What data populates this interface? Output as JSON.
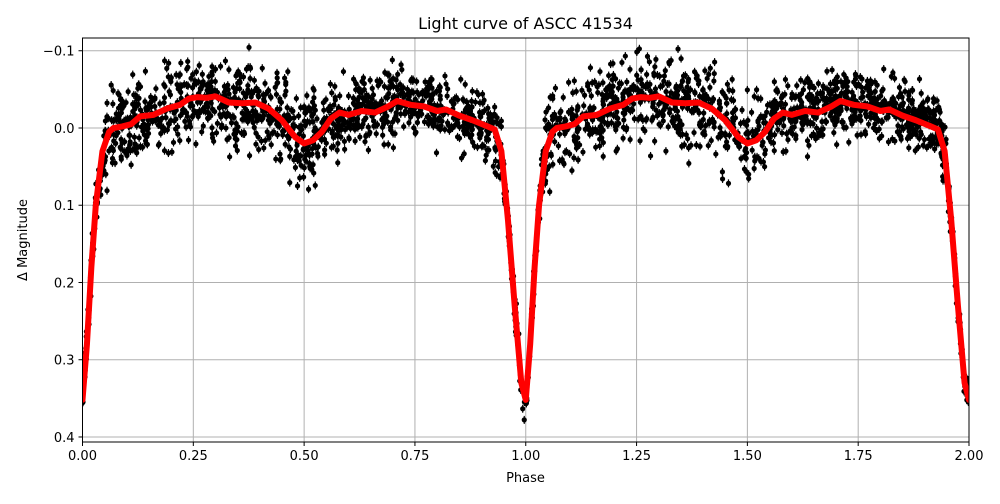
{
  "chart_data": {
    "type": "scatter",
    "title": "Light curve of ASCC 41534",
    "xlabel": "Phase",
    "ylabel": "Δ Magnitude",
    "xlim": [
      0,
      2
    ],
    "ylim": [
      0.4065,
      -0.1165
    ],
    "y_inverted": true,
    "grid": true,
    "x_ticks": [
      "0.00",
      "0.25",
      "0.50",
      "0.75",
      "1.00",
      "1.25",
      "1.50",
      "1.75",
      "2.00"
    ],
    "y_ticks": [
      "−0.1",
      "0.0",
      "0.1",
      "0.2",
      "0.3",
      "0.4"
    ],
    "colors": {
      "observations": "#000000",
      "model": "#ff0000",
      "grid": "#b0b0b0"
    },
    "series": [
      {
        "role": "observations with error bars (dense scatter around model)",
        "style": "black points with error bars"
      },
      {
        "role": "model",
        "style": "thick red line",
        "x": [
          0.0,
          0.01,
          0.02,
          0.03,
          0.045,
          0.06,
          0.07,
          0.09,
          0.11,
          0.13,
          0.16,
          0.19,
          0.22,
          0.24,
          0.26,
          0.28,
          0.3,
          0.33,
          0.36,
          0.39,
          0.42,
          0.45,
          0.48,
          0.5,
          0.52,
          0.54,
          0.56,
          0.58,
          0.6,
          0.63,
          0.66,
          0.69,
          0.71,
          0.74,
          0.77,
          0.8,
          0.82,
          0.85,
          0.88,
          0.91,
          0.93,
          0.945,
          0.96,
          0.975,
          0.99,
          1.0
        ],
        "y": [
          0.352,
          0.28,
          0.18,
          0.1,
          0.03,
          0.005,
          0.0,
          -0.002,
          -0.005,
          -0.015,
          -0.017,
          -0.025,
          -0.03,
          -0.038,
          -0.04,
          -0.039,
          -0.041,
          -0.033,
          -0.032,
          -0.033,
          -0.025,
          -0.01,
          0.012,
          0.02,
          0.016,
          0.005,
          -0.012,
          -0.02,
          -0.017,
          -0.022,
          -0.02,
          -0.028,
          -0.035,
          -0.03,
          -0.028,
          -0.022,
          -0.024,
          -0.016,
          -0.01,
          -0.003,
          0.002,
          0.03,
          0.12,
          0.23,
          0.33,
          0.352
        ],
        "repeats_with_period": 1
      }
    ]
  }
}
